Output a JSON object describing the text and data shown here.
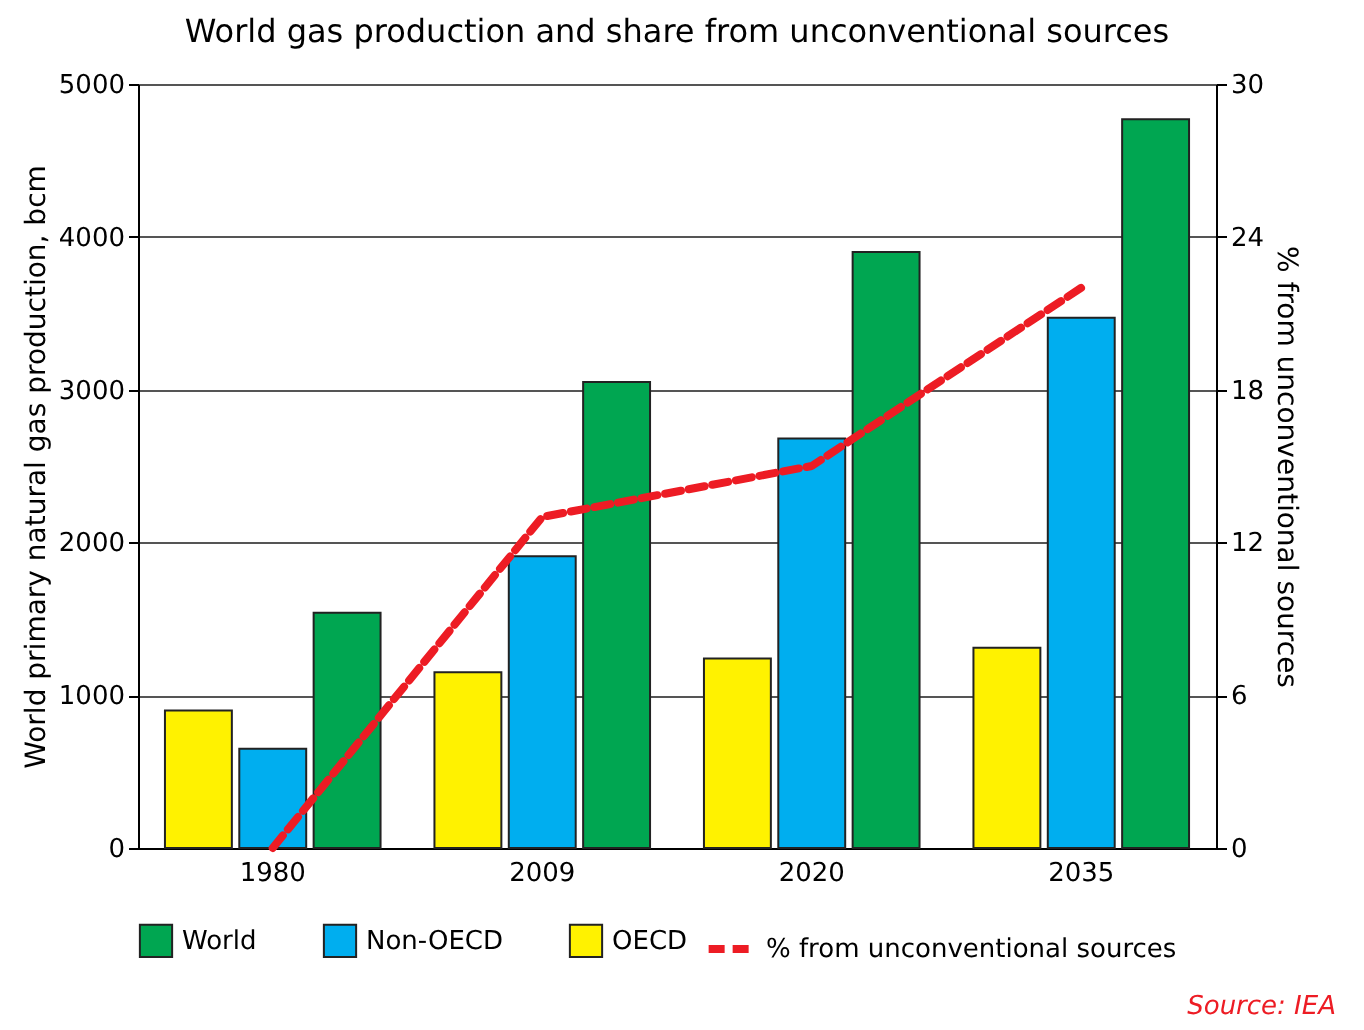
{
  "chart_data": {
    "type": "bar",
    "title": "World gas production and share from unconventional sources",
    "categories": [
      "1980",
      "2009",
      "2020",
      "2035"
    ],
    "ylabel": "World primary natural gas production, bcm",
    "y2label": "% from unconventional sources",
    "series": [
      {
        "name": "World",
        "color": "#00a651",
        "values": [
          1540,
          3050,
          3900,
          4770
        ]
      },
      {
        "name": "Non-OECD",
        "color": "#00aeef",
        "values": [
          650,
          1910,
          2680,
          3470
        ]
      },
      {
        "name": "OECD",
        "color": "#fff200",
        "values": [
          900,
          1150,
          1240,
          1310
        ]
      },
      {
        "name": "% from unconventional sources",
        "type": "line",
        "axis": "y2",
        "color": "#ed1c24",
        "line_style": "dashed",
        "values": [
          0,
          13,
          15,
          22
        ]
      }
    ],
    "ylim": [
      0,
      5000
    ],
    "yticks": [
      0,
      1000,
      2000,
      3000,
      4000,
      5000
    ],
    "y2lim": [
      0,
      30
    ],
    "y2ticks": [
      0,
      6,
      12,
      18,
      24,
      30
    ],
    "grid": "y",
    "legend": "bottom",
    "annotations": [
      "Source: IEA"
    ]
  }
}
